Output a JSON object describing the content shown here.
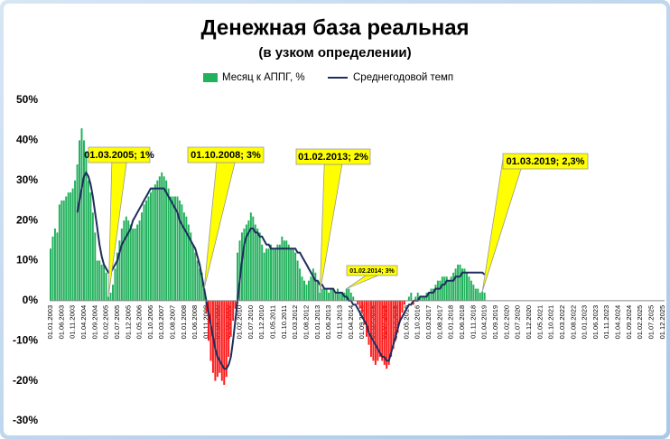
{
  "chart_data": {
    "type": "bar_line",
    "title": "Денежная база реальная",
    "subtitle": "(в узком определении)",
    "ylim": [
      -30,
      50
    ],
    "yticks": [
      {
        "value": -30,
        "label": "-30%"
      },
      {
        "value": -20,
        "label": "-20%"
      },
      {
        "value": -10,
        "label": "-10%"
      },
      {
        "value": 0,
        "label": "0%"
      },
      {
        "value": 10,
        "label": "10%"
      },
      {
        "value": 20,
        "label": "20%"
      },
      {
        "value": 30,
        "label": "30%"
      },
      {
        "value": 40,
        "label": "40%"
      },
      {
        "value": 50,
        "label": "50%"
      }
    ],
    "grid": false,
    "categories": [
      "01.01.2003",
      null,
      null,
      null,
      null,
      "01.06.2003",
      null,
      null,
      null,
      null,
      "01.11.2003",
      null,
      null,
      null,
      null,
      "01.04.2004",
      null,
      null,
      null,
      null,
      "01.09.2004",
      null,
      null,
      null,
      null,
      "01.02.2005",
      null,
      null,
      null,
      null,
      "01.07.2005",
      null,
      null,
      null,
      null,
      "01.12.2005",
      null,
      null,
      null,
      null,
      "01.05.2006",
      null,
      null,
      null,
      null,
      "01.10.2006",
      null,
      null,
      null,
      null,
      "01.03.2007",
      null,
      null,
      null,
      null,
      "01.08.2007",
      null,
      null,
      null,
      null,
      "01.01.2008",
      null,
      null,
      null,
      null,
      "01.06.2008",
      null,
      null,
      null,
      null,
      "01.11.2008",
      null,
      null,
      null,
      null,
      "01.04.2009",
      null,
      null,
      null,
      null,
      "01.09.2009",
      null,
      null,
      null,
      null,
      "01.02.2010",
      null,
      null,
      null,
      null,
      "01.07.2010",
      null,
      null,
      null,
      null,
      "01.12.2010",
      null,
      null,
      null,
      null,
      "01.05.2011",
      null,
      null,
      null,
      null,
      "01.10.2011",
      null,
      null,
      null,
      null,
      "01.03.2012",
      null,
      null,
      null,
      null,
      "01.08.2012",
      null,
      null,
      null,
      null,
      "01.01.2013",
      null,
      null,
      null,
      null,
      "01.06.2013",
      null,
      null,
      null,
      null,
      "01.11.2013",
      null,
      null,
      null,
      null,
      "01.04.2014",
      null,
      null,
      null,
      null,
      "01.09.2014",
      null,
      null,
      null,
      null,
      "01.02.2015",
      null,
      null,
      null,
      null,
      "01.07.2015",
      null,
      null,
      null,
      null,
      "01.12.2015",
      null,
      null,
      null,
      null,
      "01.05.2016",
      null,
      null,
      null,
      null,
      "01.10.2016",
      null,
      null,
      null,
      null,
      "01.03.2017",
      null,
      null,
      null,
      null,
      "01.08.2017",
      null,
      null,
      null,
      null,
      "01.01.2018",
      null,
      null,
      null,
      null,
      "01.06.2018",
      null,
      null,
      null,
      null,
      "01.11.2018",
      null,
      null,
      null,
      null,
      "01.04.2019",
      null,
      null,
      null,
      null,
      "01.09.2019",
      null,
      null,
      null,
      null,
      "01.02.2020",
      null,
      null,
      null,
      null,
      "01.07.2020",
      null,
      null,
      null,
      null,
      "01.12.2020",
      null,
      null,
      null,
      null,
      "01.05.2021",
      null,
      null,
      null,
      null,
      "01.10.2021",
      null,
      null,
      null,
      null,
      "01.03.2022",
      null,
      null,
      null,
      null,
      "01.08.2022",
      null,
      null,
      null,
      null,
      "01.01.2023",
      null,
      null,
      null,
      null,
      "01.06.2023",
      null,
      null,
      null,
      null,
      "01.11.2023",
      null,
      null,
      null,
      null,
      "01.04.2024",
      null,
      null,
      null,
      null,
      "01.09.2024",
      null,
      null,
      null,
      null,
      "01.02.2025",
      null,
      null,
      null,
      null,
      "01.07.2025",
      null,
      null,
      null,
      null,
      "01.12.2025"
    ],
    "series": [
      {
        "name": "Месяц к АППГ, %",
        "type": "bar",
        "color": "#22b15c",
        "negative_color": "#ff1a1a",
        "values": [
          13,
          16,
          18,
          17,
          24,
          25,
          25,
          26,
          27,
          27,
          28,
          30,
          34,
          40,
          43,
          40,
          37,
          30,
          27,
          22,
          17,
          10,
          10,
          9,
          9,
          7,
          1,
          2,
          4,
          8,
          12,
          15,
          18,
          20,
          21,
          20,
          19,
          18,
          18,
          19,
          20,
          22,
          24,
          25,
          26,
          27,
          28,
          29,
          30,
          31,
          32,
          31,
          30,
          28,
          26,
          26,
          26,
          26,
          25,
          24,
          22,
          21,
          19,
          17,
          14,
          12,
          10,
          8,
          7,
          3,
          -3,
          -10,
          -15,
          -18,
          -20,
          -19,
          -18,
          -20,
          -21,
          -19,
          -14,
          -9,
          -5,
          -2,
          12,
          15,
          17,
          18,
          19,
          20,
          22,
          21,
          19,
          18,
          17,
          14,
          12,
          13,
          13,
          14,
          13,
          13,
          14,
          14,
          16,
          15,
          15,
          14,
          13,
          13,
          12,
          10,
          8,
          6,
          5,
          4,
          5,
          6,
          8,
          7,
          5,
          2,
          3,
          3,
          3,
          2,
          3,
          3,
          2,
          3,
          2,
          2,
          2,
          3,
          3,
          2,
          1,
          0,
          -1,
          -2,
          -3,
          -6,
          -9,
          -11,
          -14,
          -15,
          -16,
          -15,
          -14,
          -15,
          -16,
          -17,
          -16,
          -14,
          -12,
          -10,
          -8,
          -5,
          -3,
          -1,
          0,
          1,
          2,
          -1,
          1,
          2,
          1,
          1,
          1,
          2,
          2,
          3,
          3,
          4,
          5,
          5,
          6,
          6,
          6,
          5,
          6,
          7,
          8,
          9,
          9,
          8,
          8,
          7,
          6,
          5,
          4,
          3,
          3,
          2,
          2.3,
          2,
          null,
          null,
          null,
          null,
          null,
          null,
          null,
          null,
          null,
          null,
          null,
          null,
          null,
          null,
          null,
          null,
          null,
          null,
          null,
          null,
          null,
          null,
          null,
          null,
          null,
          null,
          null,
          null,
          null,
          null,
          null,
          null,
          null,
          null,
          null,
          null,
          null,
          null,
          null,
          null,
          null,
          null,
          null,
          null,
          null,
          null,
          null,
          null,
          null,
          null,
          null,
          null,
          null,
          null,
          null,
          null,
          null,
          null,
          null,
          null,
          null,
          null,
          null,
          null,
          null,
          null,
          null,
          null,
          null,
          null,
          null,
          null,
          null,
          null,
          null,
          null,
          null,
          null,
          null,
          null
        ]
      },
      {
        "name": "Среднегодовой темп",
        "type": "line",
        "color": "#1f2d5c",
        "values": [
          null,
          null,
          null,
          null,
          null,
          null,
          null,
          null,
          null,
          null,
          null,
          null,
          22,
          25,
          28,
          31,
          32,
          31,
          29,
          26,
          22,
          18,
          14,
          11,
          9,
          8,
          7,
          7,
          8,
          9,
          10,
          12,
          14,
          15,
          16,
          17,
          18,
          20,
          21,
          22,
          23,
          24,
          25,
          26,
          27,
          28,
          28,
          28,
          28,
          28,
          28,
          28,
          27,
          26,
          25,
          24,
          23,
          22,
          20,
          19,
          18,
          17,
          16,
          15,
          14,
          13,
          11,
          9,
          6,
          3,
          0,
          -3,
          -6,
          -9,
          -12,
          -14,
          -15,
          -16,
          -17,
          -17,
          -16,
          -14,
          -10,
          -5,
          0,
          5,
          10,
          14,
          16,
          17,
          18,
          18,
          17,
          17,
          16,
          16,
          15,
          14,
          14,
          13,
          13,
          13,
          13,
          13,
          13,
          13,
          13,
          13,
          13,
          13,
          13,
          12,
          12,
          11,
          10,
          9,
          8,
          7,
          6,
          5,
          5,
          4,
          4,
          3,
          3,
          3,
          3,
          3,
          2,
          2,
          2,
          2,
          1,
          1,
          0,
          0,
          -1,
          -1,
          -2,
          -3,
          -4,
          -5,
          -6,
          -8,
          -9,
          -10,
          -11,
          -12,
          -13,
          -14,
          -14,
          -15,
          -15,
          -13,
          -11,
          -9,
          -7,
          -5,
          -4,
          -3,
          -2,
          -1,
          -1,
          0,
          0,
          0,
          1,
          1,
          1,
          1,
          2,
          2,
          2,
          3,
          3,
          3,
          4,
          4,
          5,
          5,
          5,
          5,
          6,
          6,
          6,
          7,
          7,
          7,
          7,
          7,
          7,
          7,
          7,
          7,
          7,
          6.5,
          null,
          null,
          null,
          null,
          null,
          null,
          null,
          null,
          null,
          null,
          null,
          null,
          null,
          null,
          null,
          null,
          null,
          null,
          null,
          null,
          null,
          null,
          null,
          null,
          null,
          null,
          null,
          null,
          null,
          null,
          null,
          null,
          null,
          null,
          null,
          null,
          null,
          null,
          null,
          null,
          null,
          null,
          null,
          null,
          null,
          null,
          null,
          null,
          null,
          null,
          null,
          null,
          null,
          null,
          null,
          null,
          null,
          null,
          null,
          null,
          null,
          null,
          null,
          null,
          null,
          null,
          null,
          null,
          null,
          null,
          null,
          null,
          null,
          null,
          null,
          null,
          null,
          null,
          null,
          null
        ]
      }
    ],
    "annotations": [
      "01.03.2005; 1%",
      "01.10.2008; 3%",
      "01.02.2013; 2%",
      "01.02.2014; 3%",
      "01.03.2019; 2,3%"
    ]
  }
}
